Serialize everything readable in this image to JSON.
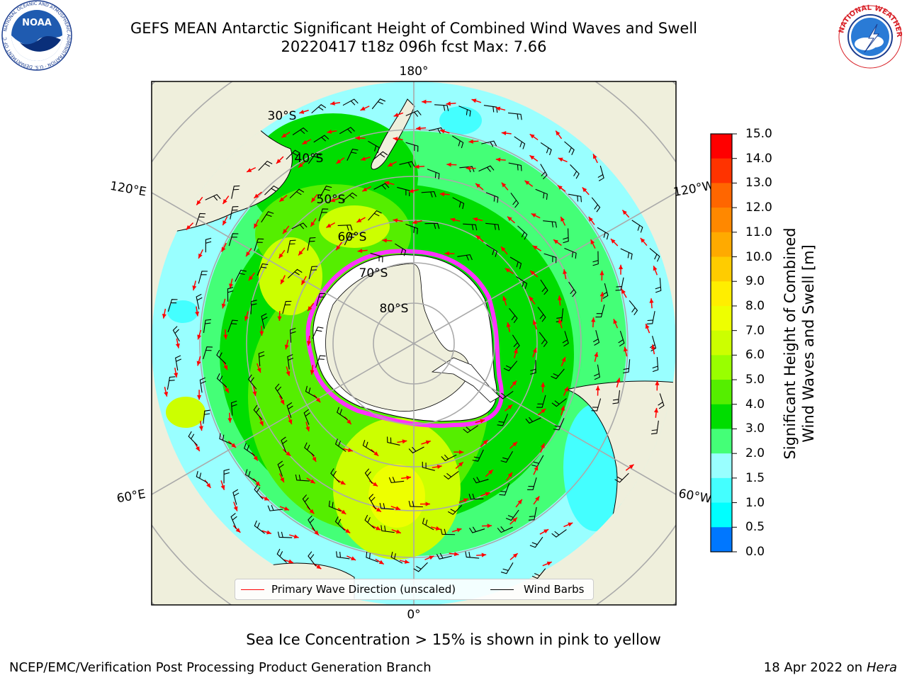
{
  "title": {
    "line1": "GEFS MEAN Antarctic Significant Height of Combined Wind Waves and Swell",
    "line2": "20220417 t18z 096h fcst   Max: 7.66"
  },
  "logos": {
    "left_icon": "noaa-logo-icon",
    "left_text": "NOAA",
    "left_ring_text": "NATIONAL OCEANIC AND ATMOSPHERIC ADMINISTRATION · U.S. DEPARTMENT OF COMMERCE",
    "right_icon": "nws-logo-icon",
    "right_ring_text": "NATIONAL WEATHER SERVICE"
  },
  "map": {
    "projection": "south-polar-stereographic",
    "longitude_labels": [
      "180°",
      "0°",
      "120°E",
      "60°E",
      "120°W",
      "60°W"
    ],
    "latitude_labels": [
      "30°S",
      "40°S",
      "50°S",
      "60°S",
      "70°S",
      "80°S"
    ]
  },
  "colorbar": {
    "label_line1": "Significant Height of Combined",
    "label_line2": "Wind Waves and Swell [m]",
    "ticks": [
      "15.0",
      "14.0",
      "13.0",
      "12.0",
      "11.0",
      "10.0",
      "9.0",
      "8.0",
      "7.0",
      "6.0",
      "5.0",
      "4.0",
      "3.0",
      "2.0",
      "1.5",
      "1.0",
      "0.5",
      "0.0"
    ],
    "colors": [
      "#ff0000",
      "#ff3300",
      "#ff6600",
      "#ff8800",
      "#ffaa00",
      "#ffcc00",
      "#ffee00",
      "#eeff00",
      "#ccff00",
      "#99ff00",
      "#55ee00",
      "#00dd00",
      "#44ff77",
      "#99ffff",
      "#44ffff",
      "#00ffff",
      "#0077ff",
      "#0000ff"
    ]
  },
  "legend": {
    "wave_direction": "Primary Wave Direction (unscaled)",
    "wind_barbs": "Wind Barbs",
    "wave_color": "#ff0000",
    "barb_color": "#000000"
  },
  "footnote": "Sea Ice Concentration > 15% is shown in pink to yellow",
  "credit_left": "NCEP/EMC/Verification Post Processing Product Generation Branch",
  "credit_right_date": "18 Apr 2022 on ",
  "credit_right_host": "Hera"
}
